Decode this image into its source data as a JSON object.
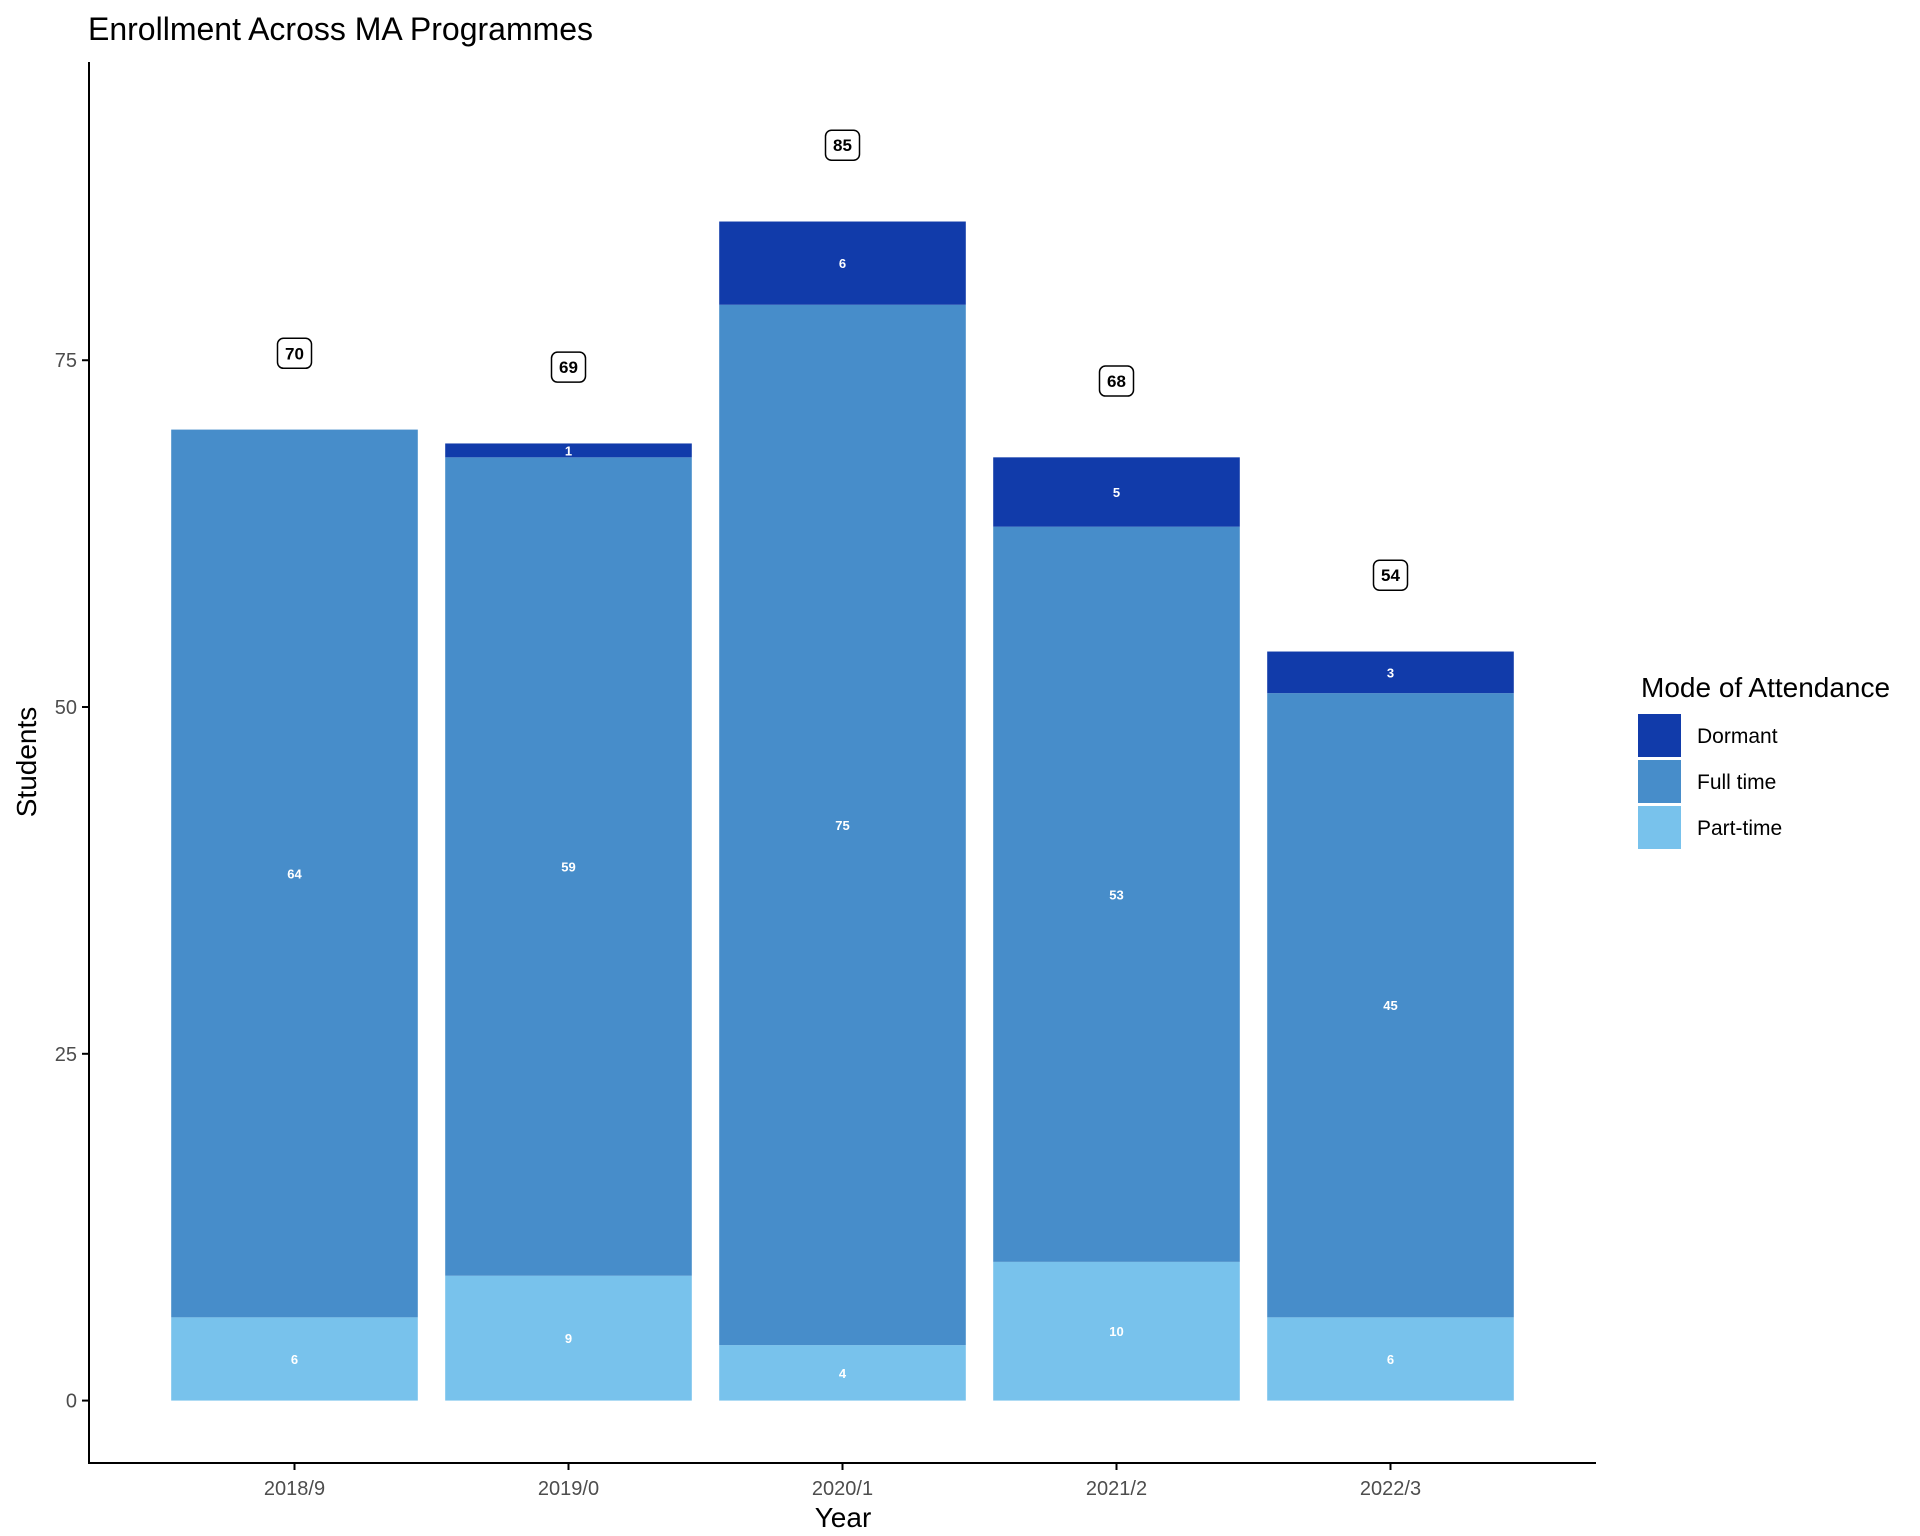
{
  "chart_data": {
    "type": "bar",
    "stacked": true,
    "title": "Enrollment Across MA Programmes",
    "xlabel": "Year",
    "ylabel": "Students",
    "categories": [
      "2018/9",
      "2019/0",
      "2020/1",
      "2021/2",
      "2022/3"
    ],
    "series": [
      {
        "name": "Part-time",
        "color": "#78C2EC",
        "values": [
          6,
          9,
          4,
          10,
          6
        ]
      },
      {
        "name": "Full time",
        "color": "#478DCA",
        "values": [
          64,
          59,
          75,
          53,
          45
        ]
      },
      {
        "name": "Dormant",
        "color": "#113BAA",
        "values": [
          0,
          1,
          6,
          5,
          3
        ]
      }
    ],
    "totals": [
      70,
      69,
      85,
      68,
      54
    ],
    "yticks": [
      0,
      25,
      50,
      75
    ],
    "ylim": [
      -4.5,
      96.5
    ],
    "grid": false,
    "legend": {
      "title": "Mode of Attendance",
      "position": "right",
      "order": [
        "Dormant",
        "Full time",
        "Part-time"
      ]
    }
  }
}
